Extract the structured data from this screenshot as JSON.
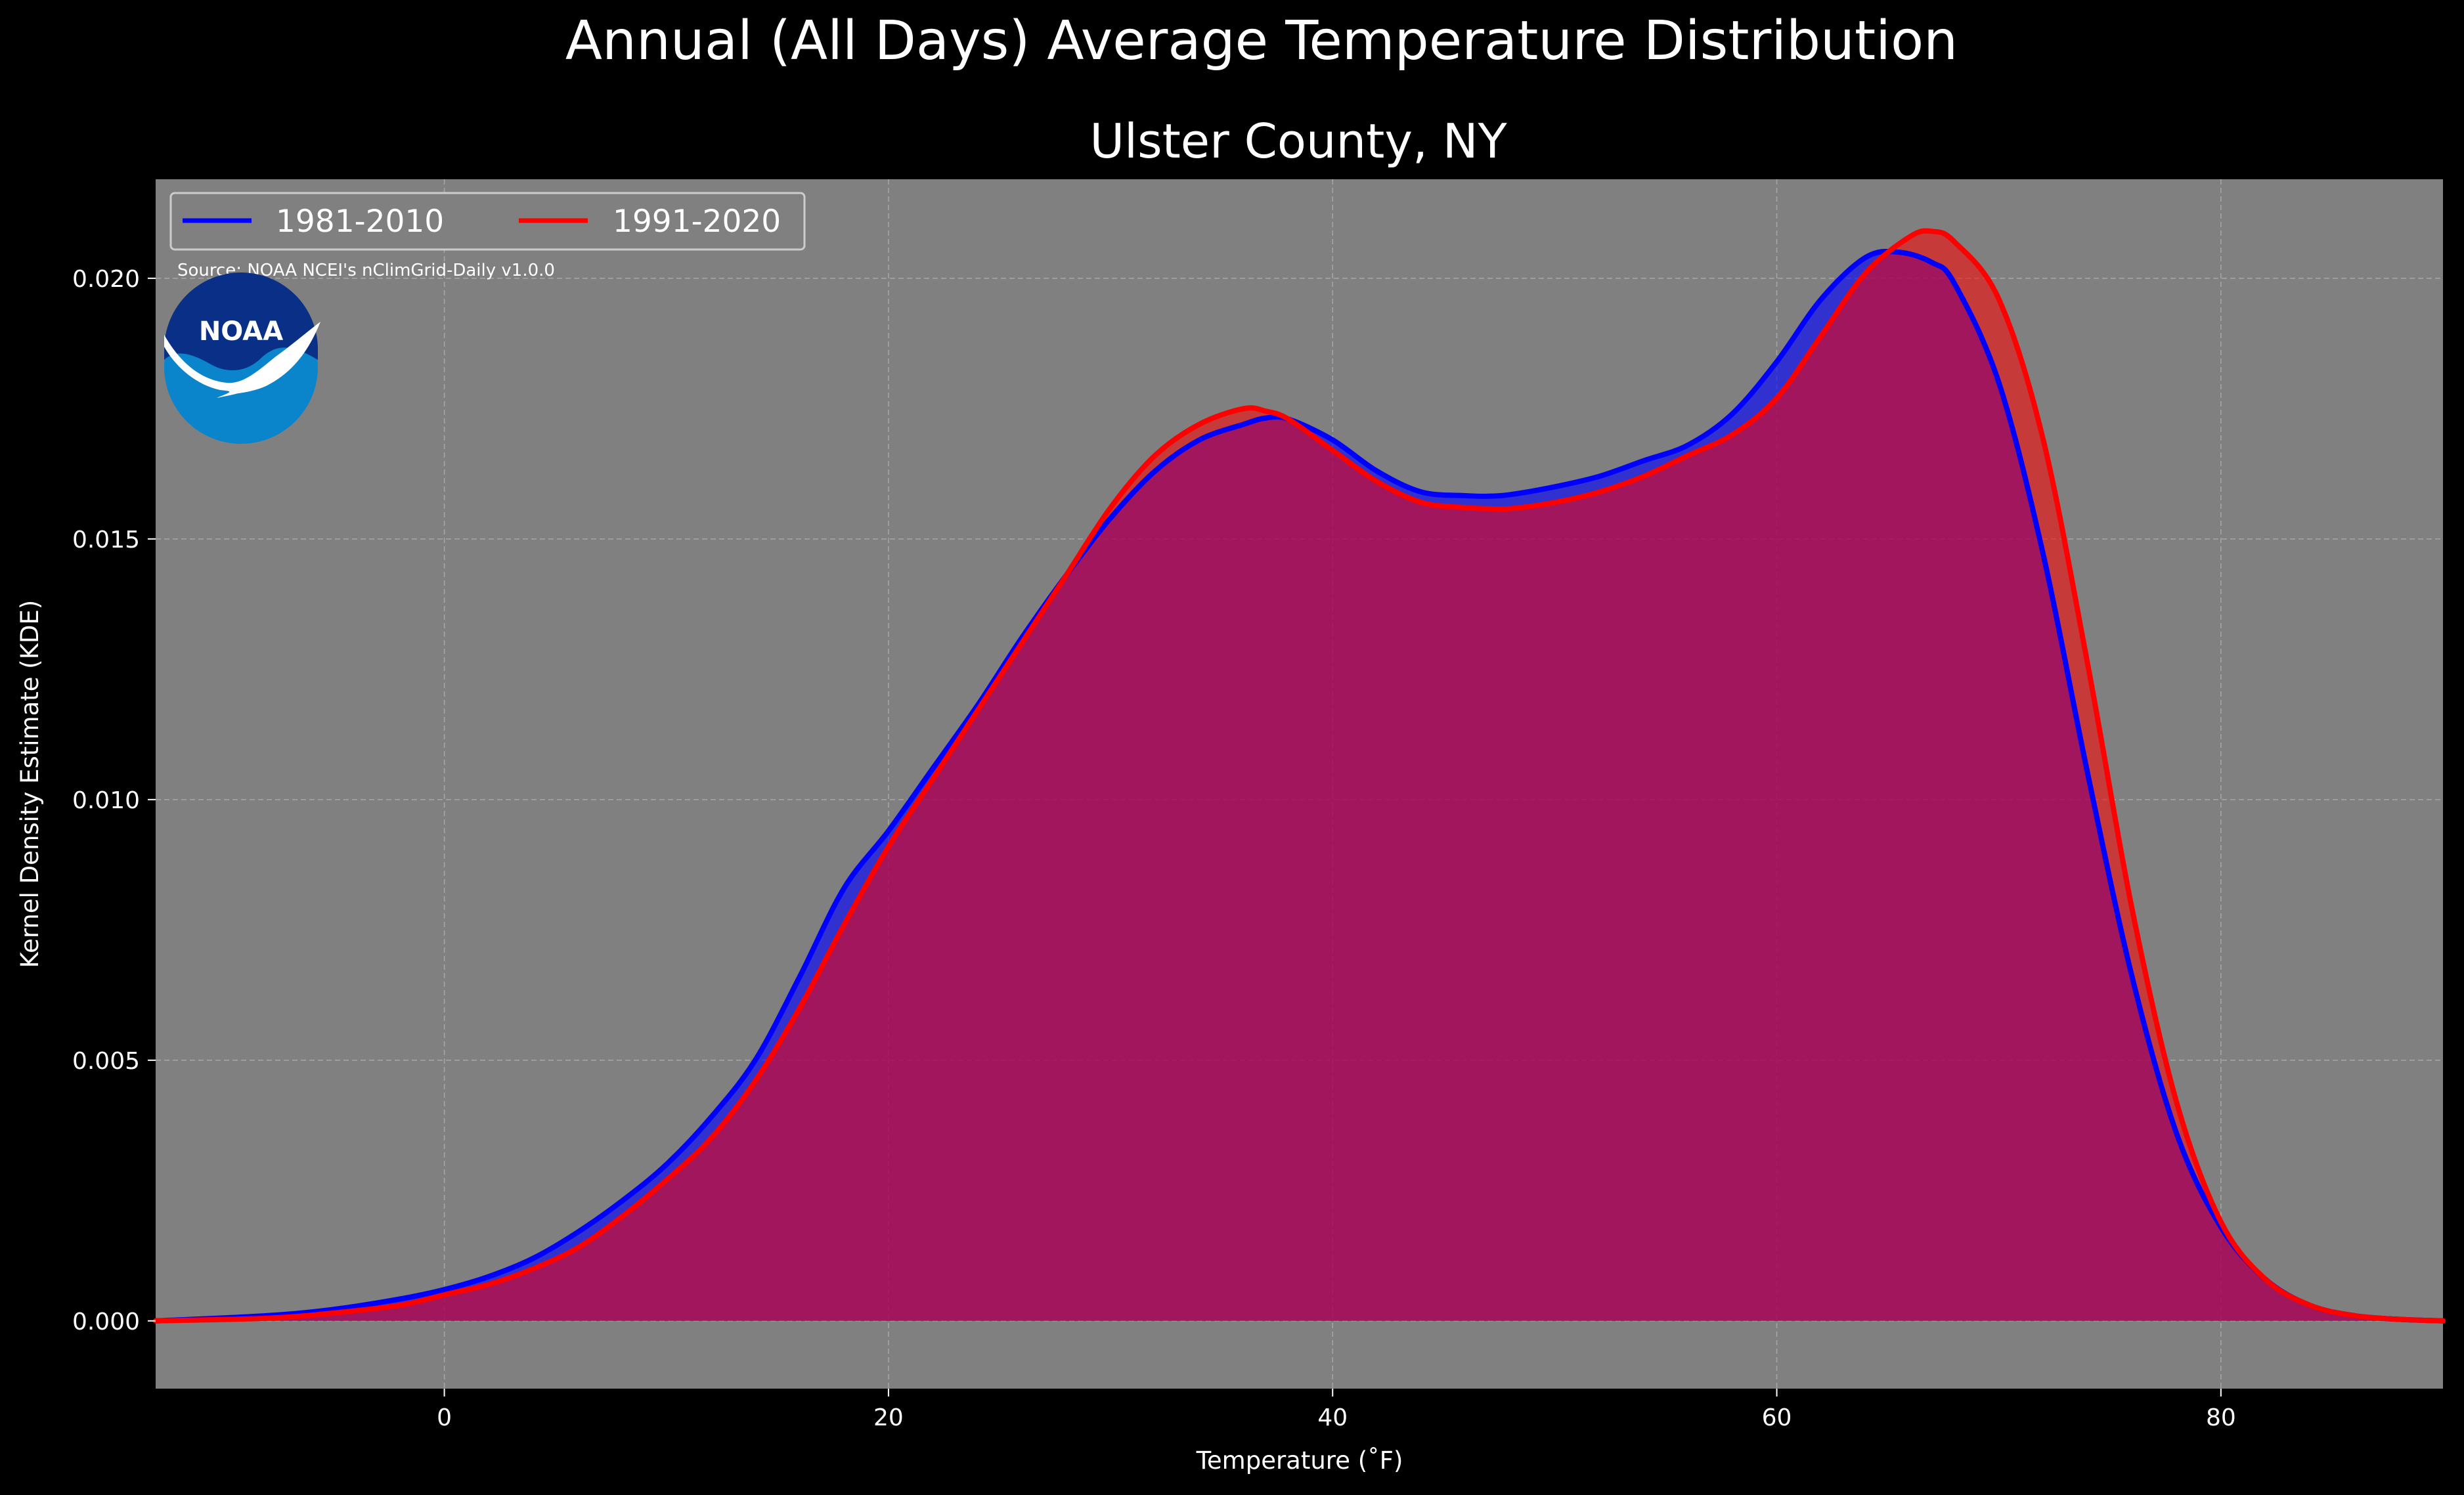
{
  "page": {
    "suptitle": "Annual (All Days) Average Temperature Distribution",
    "title": "Ulster County, NY",
    "source_note": "Source: NOAA NCEI's nClimGrid-Daily v1.0.0",
    "logo_text": "NOAA"
  },
  "colors": {
    "background": "#000000",
    "plot_background": "#808080",
    "series_1981": "#0000ff",
    "series_1991": "#ff0000",
    "overlap_fill": "#9e1f5c",
    "text": "#ffffff",
    "grid": "#b0b0b0"
  },
  "chart_data": {
    "type": "area",
    "title": "Ulster County, NY",
    "xlabel": "Temperature ($^\\circ$F)",
    "ylabel": "Kernel Density Estimate (KDE)",
    "xlim": [
      -13,
      90
    ],
    "ylim": [
      -0.0013,
      0.0219
    ],
    "x_ticks": [
      0,
      20,
      40,
      60,
      80
    ],
    "y_ticks": [
      0.0,
      0.005,
      0.01,
      0.015,
      0.02
    ],
    "x_tick_labels": [
      "0",
      "20",
      "40",
      "60",
      "80"
    ],
    "y_tick_labels": [
      "0.000",
      "0.005",
      "0.010",
      "0.015",
      "0.020"
    ],
    "grid": true,
    "legend_position": "top-left",
    "series": [
      {
        "name": "1981-2010",
        "color": "#0000ff",
        "x": [
          -13,
          -8,
          -5,
          -2,
          0,
          2,
          4,
          6,
          8,
          10,
          12,
          14,
          16,
          18,
          20,
          22,
          24,
          26,
          28,
          30,
          32,
          34,
          36,
          37,
          38,
          40,
          42,
          44,
          46,
          47,
          48,
          50,
          52,
          54,
          56,
          58,
          60,
          62,
          64,
          65.5,
          67,
          68,
          70,
          72,
          74,
          76,
          78,
          80,
          82,
          84,
          86,
          88,
          90
        ],
        "y": [
          0.0,
          0.0001,
          0.00022,
          0.00042,
          0.0006,
          0.00085,
          0.0012,
          0.0017,
          0.0023,
          0.003,
          0.0039,
          0.005,
          0.0066,
          0.0083,
          0.0094,
          0.0106,
          0.0118,
          0.0131,
          0.0143,
          0.0154,
          0.0163,
          0.0169,
          0.0172,
          0.01732,
          0.0173,
          0.0169,
          0.0163,
          0.0159,
          0.01583,
          0.01582,
          0.01585,
          0.016,
          0.0162,
          0.0165,
          0.0168,
          0.0174,
          0.0184,
          0.0196,
          0.0204,
          0.0205,
          0.0203,
          0.0199,
          0.018,
          0.0147,
          0.0105,
          0.0066,
          0.0036,
          0.0018,
          0.0008,
          0.0003,
          0.0001,
          3e-05,
          0.0
        ]
      },
      {
        "name": "1991-2020",
        "color": "#ff0000",
        "x": [
          -13,
          -8,
          -5,
          -2,
          0,
          2,
          4,
          6,
          8,
          10,
          12,
          14,
          16,
          18,
          20,
          22,
          24,
          26,
          28,
          30,
          32,
          34,
          36,
          37,
          38,
          40,
          42,
          44,
          46,
          47,
          48,
          50,
          52,
          54,
          56,
          58,
          60,
          62,
          64,
          66,
          67,
          68,
          70,
          72,
          74,
          76,
          78,
          80,
          82,
          84,
          86,
          88,
          90
        ],
        "y": [
          0.0,
          5e-05,
          0.00015,
          0.0003,
          0.0005,
          0.0007,
          0.001,
          0.0014,
          0.002,
          0.0027,
          0.0035,
          0.0046,
          0.006,
          0.0076,
          0.0091,
          0.0104,
          0.0117,
          0.013,
          0.0143,
          0.0156,
          0.0166,
          0.0172,
          0.0175,
          0.01745,
          0.0173,
          0.0167,
          0.0161,
          0.0157,
          0.0156,
          0.01558,
          0.01558,
          0.0157,
          0.0159,
          0.0162,
          0.0166,
          0.017,
          0.0177,
          0.0189,
          0.0201,
          0.0208,
          0.0209,
          0.0207,
          0.0196,
          0.0169,
          0.0126,
          0.0079,
          0.0042,
          0.0019,
          0.0008,
          0.0003,
          0.0001,
          3e-05,
          0.0
        ]
      }
    ]
  }
}
